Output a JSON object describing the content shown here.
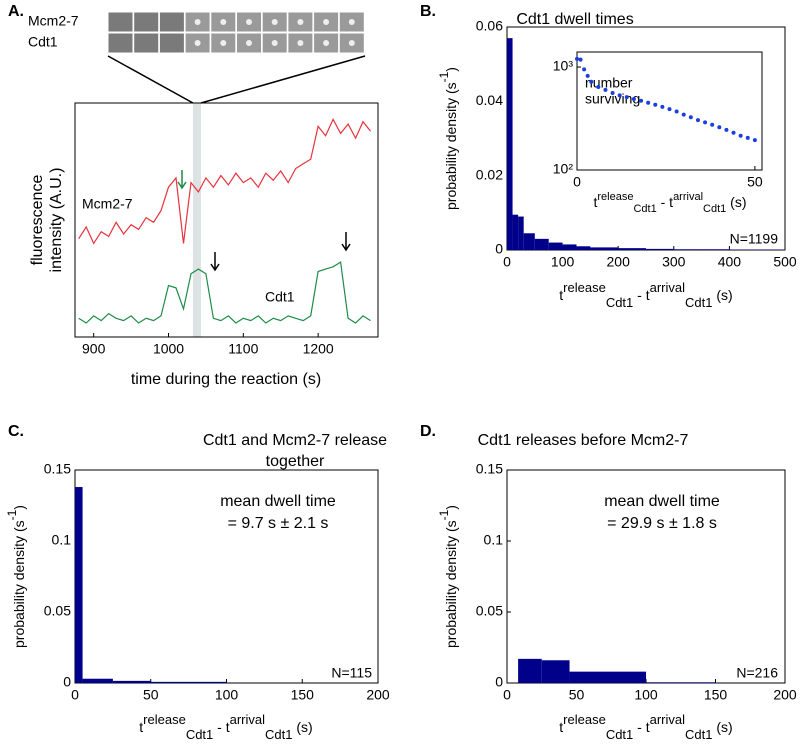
{
  "chart_data": [
    {
      "type": "line",
      "panel_label": "A.",
      "xlabel": "time during the reaction (s)",
      "ylabel": [
        "fluorescence",
        "intensity (A.U.)"
      ],
      "x": [
        880,
        890,
        900,
        910,
        920,
        930,
        940,
        950,
        960,
        970,
        980,
        990,
        1000,
        1010,
        1020,
        1030,
        1040,
        1050,
        1060,
        1070,
        1080,
        1090,
        1100,
        1110,
        1120,
        1130,
        1140,
        1150,
        1160,
        1170,
        1180,
        1190,
        1200,
        1210,
        1220,
        1230,
        1240,
        1250,
        1260,
        1270
      ],
      "series": [
        {
          "name": "Mcm2-7",
          "color": "#e8323c",
          "values": [
            42,
            47,
            40,
            45,
            43,
            49,
            44,
            48,
            46,
            51,
            49,
            54,
            64,
            68,
            40,
            66,
            62,
            68,
            64,
            69,
            65,
            70,
            66,
            68,
            64,
            70,
            67,
            71,
            66,
            72,
            74,
            76,
            90,
            86,
            93,
            87,
            91,
            85,
            92,
            88
          ]
        },
        {
          "name": "Cdt1",
          "color": "#1e8c46",
          "values": [
            8,
            6,
            9,
            7,
            10,
            8,
            7,
            9,
            6,
            8,
            7,
            9,
            22,
            21,
            12,
            27,
            29,
            27,
            8,
            7,
            9,
            6,
            8,
            7,
            9,
            6,
            8,
            7,
            9,
            8,
            7,
            9,
            28,
            29,
            30,
            32,
            8,
            6,
            9,
            7
          ]
        }
      ],
      "xlim": [
        875,
        1280
      ],
      "xticks": [
        900,
        1000,
        1100,
        1200
      ],
      "ylim": [
        0,
        100
      ],
      "yticks": []
    },
    {
      "type": "histogram",
      "panel_label": "B.",
      "title": [
        "Cdt1 dwell times"
      ],
      "xlabel_parts": [
        "t",
        "release",
        "Cdt1",
        " - t",
        "arrival",
        "Cdt1",
        " (s)"
      ],
      "ylabel_parts": [
        "probability density (s",
        "-1",
        ")"
      ],
      "bins": [
        0,
        10,
        20,
        30,
        50,
        75,
        100,
        125,
        150,
        200,
        250,
        300,
        350,
        400,
        450,
        500
      ],
      "values": [
        0.057,
        0.0095,
        0.009,
        0.0045,
        0.003,
        0.002,
        0.0015,
        0.001,
        0.0007,
        0.0005,
        0.0003,
        0.0002,
        0.0002,
        0.0001,
        0.0001
      ],
      "color": "#00008b",
      "xlim": [
        0,
        500
      ],
      "xticks": [
        0,
        100,
        200,
        300,
        400,
        500
      ],
      "ylim": [
        0,
        0.06
      ],
      "yticks": [
        0,
        0.02,
        0.04,
        0.06
      ],
      "annotations": [],
      "n_label": "N=1199"
    },
    {
      "type": "scatter",
      "ylabel": [
        "number",
        "surviving"
      ],
      "log_y": true,
      "xlabel_parts": [
        "t",
        "release",
        "Cdt1",
        " - t",
        "arrival",
        "Cdt1",
        " (s)"
      ],
      "x": [
        0,
        1,
        2,
        3,
        4,
        6,
        8,
        10,
        12,
        14,
        16,
        18,
        20,
        22,
        24,
        26,
        28,
        30,
        32,
        34,
        36,
        38,
        40,
        42,
        44,
        46,
        48,
        50
      ],
      "values": [
        1199,
        1180,
        950,
        820,
        720,
        640,
        600,
        560,
        530,
        510,
        490,
        470,
        450,
        430,
        410,
        390,
        370,
        345,
        325,
        305,
        290,
        275,
        260,
        245,
        230,
        215,
        205,
        195
      ],
      "color": "#1a3ee0",
      "xlim": [
        0,
        52
      ],
      "xticks": [
        0,
        50
      ],
      "ylim": [
        100,
        1400
      ],
      "yticks": [
        {
          "value": 100,
          "label": "10²"
        },
        {
          "value": 1000,
          "label": "10³"
        }
      ]
    },
    {
      "type": "histogram",
      "panel_label": "C.",
      "title": [
        "Cdt1 and Mcm2-7 release",
        "together"
      ],
      "xlabel_parts": [
        "t",
        "release",
        "Cdt1",
        " - t",
        "arrival",
        "Cdt1",
        " (s)"
      ],
      "ylabel_parts": [
        "probability density (s",
        "-1",
        ")"
      ],
      "bins": [
        0,
        5,
        25,
        50,
        100
      ],
      "values": [
        0.138,
        0.003,
        0.0015,
        0.0008
      ],
      "color": "#00008b",
      "xlim": [
        0,
        200
      ],
      "xticks": [
        0,
        50,
        100,
        150,
        200
      ],
      "ylim": [
        0,
        0.15
      ],
      "yticks": [
        0,
        0.05,
        0.1,
        0.15
      ],
      "annotations": [
        "mean dwell time",
        "= 9.7 s ± 2.1 s"
      ],
      "n_label": "N=115"
    },
    {
      "type": "histogram",
      "panel_label": "D.",
      "title": [
        "Cdt1 releases before Mcm2-7"
      ],
      "xlabel_parts": [
        "t",
        "release",
        "Cdt1",
        " - t",
        "arrival",
        "Cdt1",
        " (s)"
      ],
      "ylabel_parts": [
        "probability density (s",
        "-1",
        ")"
      ],
      "bins": [
        8,
        25,
        45,
        100,
        150
      ],
      "values": [
        0.017,
        0.016,
        0.008,
        0.0005
      ],
      "color": "#00008b",
      "xlim": [
        0,
        200
      ],
      "xticks": [
        0,
        50,
        100,
        150,
        200
      ],
      "ylim": [
        0,
        0.15
      ],
      "yticks": [
        0,
        0.05,
        0.1,
        0.15
      ],
      "annotations": [
        "mean dwell time",
        "= 29.9 s ± 1.8 s"
      ],
      "n_label": "N=216"
    }
  ]
}
